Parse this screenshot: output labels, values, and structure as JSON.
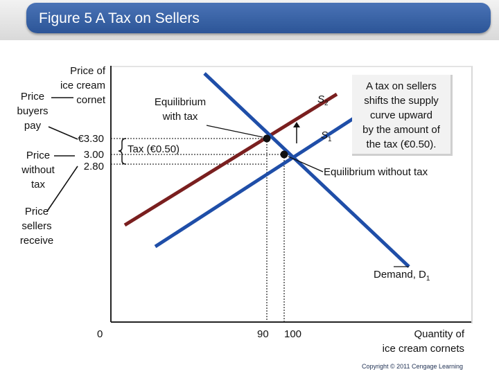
{
  "title": "Figure 5 A Tax on Sellers",
  "axes": {
    "y_label": "Price of\nice cream\ncornet",
    "x_label": "Quantity of\nice cream cornets",
    "origin": "0",
    "x_ticks": [
      "90",
      "100"
    ],
    "y_ticks": [
      "€3.30",
      "3.00",
      "2.80"
    ]
  },
  "labels": {
    "price_buyers_pay": "Price\nbuyers\npay",
    "price_without_tax": "Price\nwithout\ntax",
    "price_sellers_receive": "Price\nsellers\nreceive",
    "equilibrium_with_tax": "Equilibrium\nwith tax",
    "equilibrium_without_tax": "Equilibrium without tax",
    "tax": "Tax (€0.50)",
    "s2_base": "S",
    "s2_sub": "2",
    "s1_base": "S",
    "s1_sub": "1",
    "demand_base": "Demand, D",
    "demand_sub": "1"
  },
  "callout": "A tax on sellers\nshifts the supply\ncurve upward\nby the amount of\nthe tax (€0.50).",
  "copyright": "Copyright © 2011 Cengage Learning",
  "colors": {
    "title_bar": "#3a63a8",
    "supply_s1": "#1f4ea8",
    "supply_s2": "#7a1f1f",
    "demand": "#1f4ea8",
    "axis": "#222222"
  },
  "chart_data": {
    "type": "line",
    "x_label": "Quantity of ice cream cornets",
    "y_label": "Price of ice cream cornet",
    "x_ticks": [
      90,
      100
    ],
    "y_ticks": [
      2.8,
      3.0,
      3.3
    ],
    "equilibria": [
      {
        "label": "Equilibrium with tax",
        "quantity": 90,
        "price": 3.3
      },
      {
        "label": "Equilibrium without tax",
        "quantity": 100,
        "price": 3.0
      }
    ],
    "tax": 0.5,
    "price_sellers_receive": 2.8,
    "series": [
      {
        "name": "S1",
        "kind": "supply"
      },
      {
        "name": "S2",
        "kind": "supply"
      },
      {
        "name": "Demand, D1",
        "kind": "demand"
      }
    ]
  }
}
